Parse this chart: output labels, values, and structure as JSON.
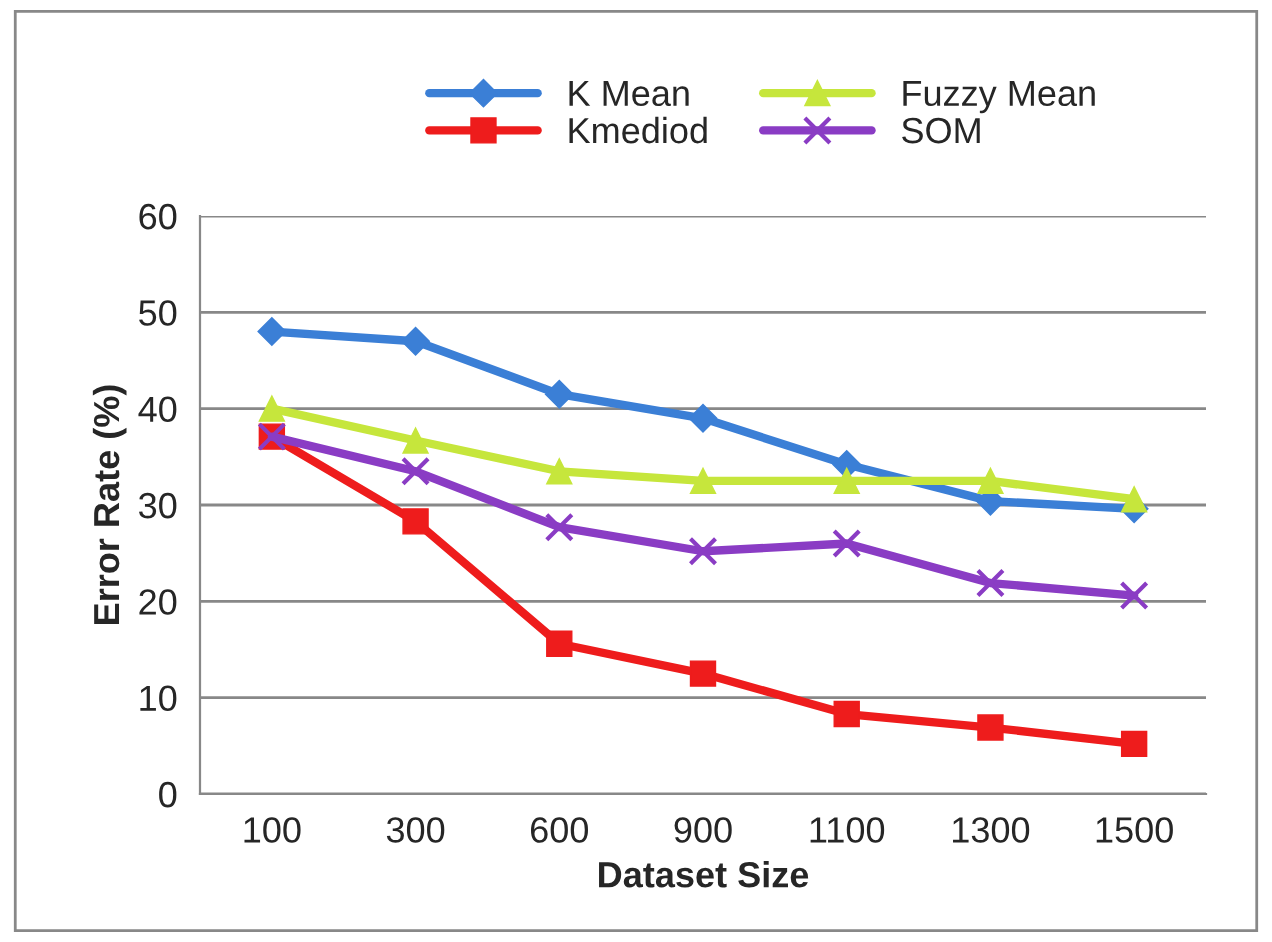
{
  "chart_data": {
    "type": "line",
    "xlabel": "Dataset Size",
    "ylabel": "Error Rate (%)",
    "categories": [
      "100",
      "300",
      "600",
      "900",
      "1100",
      "1300",
      "1500"
    ],
    "series": [
      {
        "name": "K Mean",
        "color": "#3b7fd6",
        "marker": "diamond",
        "values": [
          48,
          47,
          41.5,
          39,
          34.2,
          30.4,
          29.6
        ]
      },
      {
        "name": "Kmediod",
        "color": "#ee1c1c",
        "marker": "square",
        "values": [
          37.1,
          28.3,
          15.6,
          12.5,
          8.3,
          6.9,
          5.2
        ]
      },
      {
        "name": "Fuzzy Mean",
        "color": "#c6e63c",
        "marker": "triangle",
        "values": [
          40,
          36.7,
          33.5,
          32.5,
          32.5,
          32.5,
          30.6
        ]
      },
      {
        "name": "SOM",
        "color": "#8a3cc4",
        "marker": "cross",
        "values": [
          37.1,
          33.5,
          27.7,
          25.2,
          26,
          21.9,
          20.6
        ]
      }
    ],
    "ylim": [
      0,
      60
    ],
    "yticks": [
      0,
      10,
      20,
      30,
      40,
      50,
      60
    ],
    "grid": "y",
    "legend": "top"
  }
}
